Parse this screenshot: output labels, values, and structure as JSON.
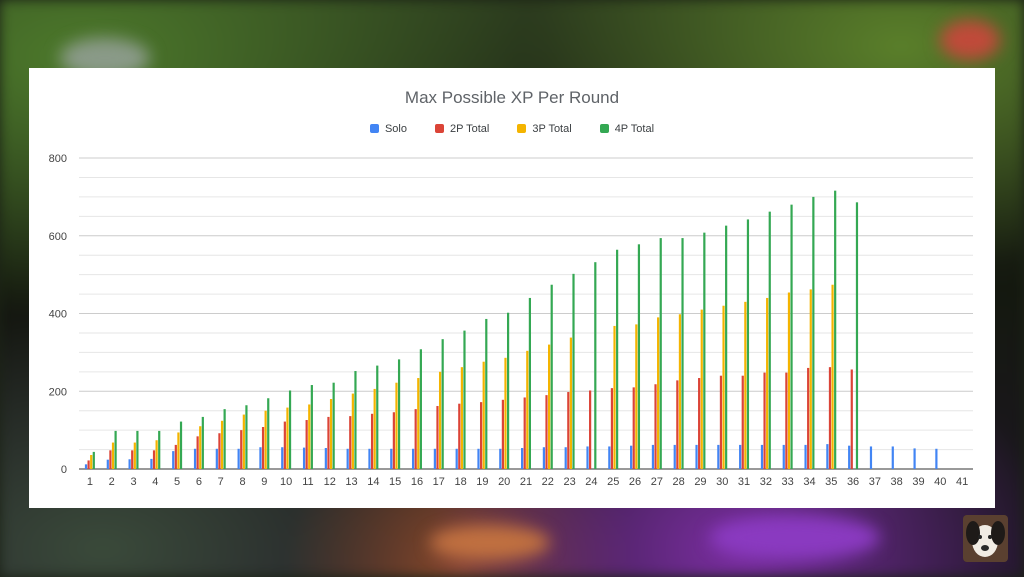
{
  "chart_data": {
    "type": "bar",
    "title": "Max Possible XP Per Round",
    "legend_position": "top",
    "ylim": [
      0,
      800
    ],
    "yticks": [
      0,
      200,
      400,
      600,
      800
    ],
    "grid": true,
    "categories": [
      "1",
      "2",
      "3",
      "4",
      "5",
      "6",
      "7",
      "8",
      "9",
      "10",
      "11",
      "12",
      "13",
      "14",
      "15",
      "16",
      "17",
      "18",
      "19",
      "20",
      "21",
      "22",
      "23",
      "24",
      "25",
      "26",
      "27",
      "28",
      "29",
      "30",
      "31",
      "32",
      "33",
      "34",
      "35",
      "36",
      "37",
      "38",
      "39",
      "40",
      "41"
    ],
    "series": [
      {
        "name": "Solo",
        "color": "#4285f4",
        "values": [
          12,
          24,
          25,
          26,
          46,
          52,
          52,
          52,
          56,
          56,
          55,
          54,
          52,
          52,
          52,
          52,
          52,
          52,
          52,
          52,
          54,
          56,
          56,
          58,
          58,
          60,
          62,
          62,
          62,
          62,
          62,
          62,
          62,
          62,
          64,
          60,
          58,
          58,
          53,
          52,
          null
        ]
      },
      {
        "name": "2P Total",
        "color": "#db4437",
        "values": [
          22,
          48,
          48,
          48,
          62,
          84,
          92,
          100,
          108,
          122,
          126,
          134,
          136,
          142,
          146,
          154,
          162,
          168,
          172,
          178,
          184,
          190,
          198,
          202,
          208,
          210,
          218,
          228,
          234,
          240,
          240,
          248,
          248,
          260,
          262,
          256,
          null,
          null,
          null,
          null,
          null
        ]
      },
      {
        "name": "3P Total",
        "color": "#f4b400",
        "values": [
          36,
          68,
          68,
          74,
          94,
          110,
          124,
          140,
          150,
          158,
          166,
          180,
          194,
          206,
          222,
          234,
          250,
          262,
          276,
          286,
          304,
          320,
          338,
          null,
          368,
          372,
          390,
          398,
          410,
          420,
          430,
          440,
          454,
          462,
          474,
          null,
          null,
          null,
          null,
          null,
          null
        ]
      },
      {
        "name": "4P Total",
        "color": "#34a853",
        "values": [
          44,
          98,
          98,
          98,
          122,
          134,
          154,
          164,
          182,
          202,
          216,
          222,
          252,
          266,
          282,
          308,
          334,
          356,
          386,
          402,
          440,
          474,
          502,
          532,
          564,
          578,
          594,
          594,
          608,
          626,
          642,
          662,
          680,
          700,
          716,
          686,
          null,
          null,
          null,
          null,
          null
        ]
      }
    ]
  }
}
